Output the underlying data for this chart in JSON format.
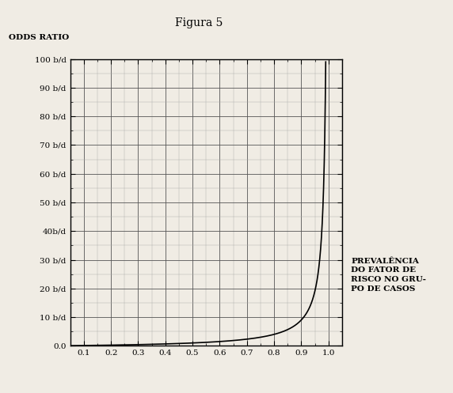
{
  "title": "Figura 5",
  "ylabel": "ODDS RATIO",
  "xlabel_lines": [
    "PREVALÊNCIA",
    "DO FATOR DE",
    "RISCO NO GRU-",
    "PO DE CASOS"
  ],
  "ytick_labels": [
    "0.0",
    "10 b/d",
    "20 b/d",
    "30 b/d",
    "40b/d",
    "50 b/d",
    "60 b/d",
    "70 b/d",
    "80 b/d",
    "90 b/d",
    "100 b/d"
  ],
  "ytick_values": [
    0,
    10,
    20,
    30,
    40,
    50,
    60,
    70,
    80,
    90,
    100
  ],
  "xtick_values": [
    0.1,
    0.2,
    0.3,
    0.4,
    0.5,
    0.6,
    0.7,
    0.8,
    0.9,
    1.0
  ],
  "xlim": [
    0.05,
    1.05
  ],
  "ylim": [
    0,
    100
  ],
  "background_color": "#f0ece4",
  "line_color": "#000000",
  "grid_major_color": "#555555",
  "grid_minor_color": "#aaaaaa",
  "title_fontsize": 10,
  "label_fontsize": 7.5,
  "tick_fontsize": 7.5,
  "xlabel_fontsize": 7.5
}
